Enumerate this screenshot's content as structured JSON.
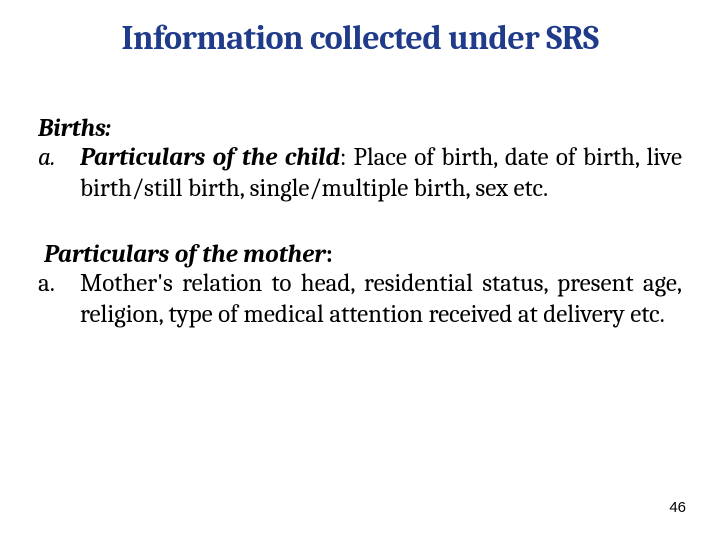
{
  "title": "Information collected under SRS",
  "title_color": "#1f3b8a",
  "background_color": "#ffffff",
  "text_color": "#000000",
  "title_fontsize": 34,
  "body_fontsize": 25,
  "section1": {
    "label": "Births:",
    "item_marker": "a.",
    "item_heading": "Particulars of the child",
    "item_text": ":  Place of birth, date of birth, live birth/still birth, single/multiple birth, sex etc."
  },
  "section2": {
    "label": "Particulars of the mother",
    "label_suffix": ":",
    "item_marker": "a.",
    "item_text": "Mother's relation to head, residential status, present age, religion, type of medical attention received at delivery etc."
  },
  "page_number": "46"
}
